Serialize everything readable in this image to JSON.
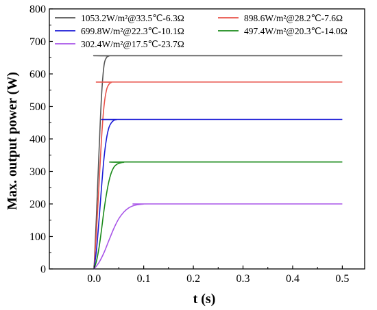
{
  "chart_data": {
    "type": "line",
    "title": "",
    "xlabel": "t (s)",
    "ylabel": "Max. output power (W)",
    "xlim": [
      -0.09,
      0.545
    ],
    "ylim": [
      0,
      800
    ],
    "xticks": [
      0.0,
      0.1,
      0.2,
      0.3,
      0.4,
      0.5
    ],
    "xtick_labels": [
      "0.0",
      "0.1",
      "0.2",
      "0.3",
      "0.4",
      "0.5"
    ],
    "yticks": [
      0,
      100,
      200,
      300,
      400,
      500,
      600,
      700,
      800
    ],
    "ytick_labels": [
      "0",
      "100",
      "200",
      "300",
      "400",
      "500",
      "600",
      "700",
      "800"
    ],
    "grid": false,
    "legend_position": "top",
    "series": [
      {
        "name": "1053.2W/m²@33.5℃-6.3Ω",
        "color": "#555555",
        "steady_value": 656,
        "x": [
          0.0,
          0.005,
          0.01,
          0.015,
          0.02,
          0.025,
          0.03,
          0.035,
          0.5
        ],
        "y": [
          0,
          170,
          360,
          530,
          625,
          650,
          655,
          656,
          656
        ]
      },
      {
        "name": "898.6W/m²@28.2℃-7.6Ω",
        "color": "#e8524a",
        "steady_value": 575,
        "x": [
          0.0,
          0.005,
          0.01,
          0.015,
          0.02,
          0.025,
          0.03,
          0.035,
          0.04,
          0.5
        ],
        "y": [
          0,
          120,
          260,
          400,
          500,
          550,
          568,
          574,
          575,
          575
        ]
      },
      {
        "name": "699.8W/m²@22.3℃-10.1Ω",
        "color": "#1a1ad6",
        "steady_value": 460,
        "x": [
          0.0,
          0.005,
          0.01,
          0.015,
          0.02,
          0.025,
          0.03,
          0.035,
          0.04,
          0.045,
          0.05,
          0.5
        ],
        "y": [
          0,
          60,
          150,
          250,
          340,
          400,
          435,
          450,
          457,
          459,
          460,
          460
        ]
      },
      {
        "name": "497.4W/m²@20.3℃-14.0Ω",
        "color": "#1a8a1a",
        "steady_value": 329,
        "x": [
          0.0,
          0.005,
          0.01,
          0.015,
          0.02,
          0.025,
          0.03,
          0.035,
          0.04,
          0.045,
          0.05,
          0.055,
          0.06,
          0.065,
          0.5
        ],
        "y": [
          0,
          25,
          65,
          120,
          180,
          230,
          270,
          297,
          313,
          321,
          325,
          327,
          328,
          329,
          329
        ]
      },
      {
        "name": "302.4W/m²@17.5℃-23.7Ω",
        "color": "#a855e8",
        "steady_value": 200,
        "x": [
          0.0,
          0.01,
          0.02,
          0.03,
          0.04,
          0.05,
          0.06,
          0.07,
          0.08,
          0.09,
          0.1,
          0.11,
          0.5
        ],
        "y": [
          0,
          20,
          50,
          88,
          125,
          155,
          175,
          188,
          195,
          198,
          199.5,
          200,
          200
        ]
      }
    ]
  }
}
